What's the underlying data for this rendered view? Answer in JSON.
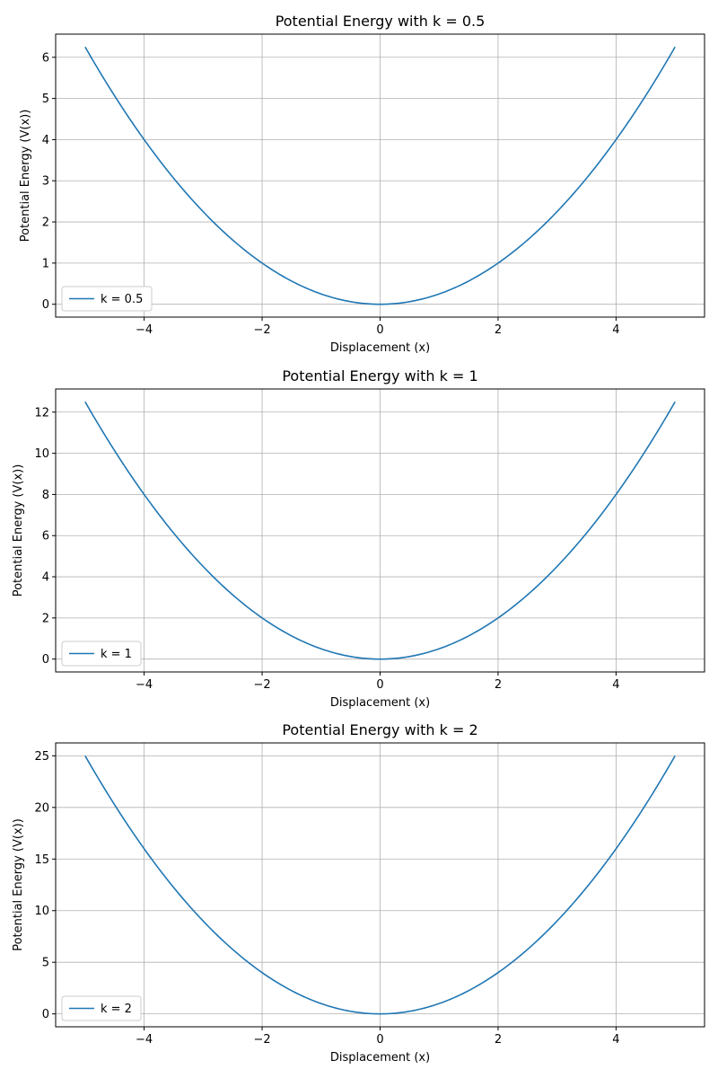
{
  "style": {
    "line_color": "#1f77b4",
    "grid_color": "#b0b0b0",
    "frame_color": "#000000",
    "legend_border_color": "#cccccc"
  },
  "chart_data": [
    {
      "type": "line",
      "title": "Potential Energy with k = 0.5",
      "xlabel": "Displacement (x)",
      "ylabel": "Potential Energy (V(x))",
      "xlim": [
        -5.5,
        5.5
      ],
      "ylim": [
        -0.3125,
        6.5625
      ],
      "xticks": [
        -4,
        -2,
        0,
        2,
        4
      ],
      "xtick_labels": [
        "−4",
        "−2",
        "0",
        "2",
        "4"
      ],
      "yticks": [
        0,
        1,
        2,
        3,
        4,
        5,
        6
      ],
      "ytick_labels": [
        "0",
        "1",
        "2",
        "3",
        "4",
        "5",
        "6"
      ],
      "grid": true,
      "legend_position": "lower-left",
      "series": [
        {
          "name": "k = 0.5",
          "x": [
            -5,
            -4.5,
            -4,
            -3.5,
            -3,
            -2.5,
            -2,
            -1.5,
            -1,
            -0.5,
            0,
            0.5,
            1,
            1.5,
            2,
            2.5,
            3,
            3.5,
            4,
            4.5,
            5
          ],
          "y": [
            6.25,
            5.0625,
            4,
            3.0625,
            2.25,
            1.5625,
            1,
            0.5625,
            0.25,
            0.0625,
            0,
            0.0625,
            0.25,
            0.5625,
            1,
            1.5625,
            2.25,
            3.0625,
            4,
            5.0625,
            6.25
          ]
        }
      ]
    },
    {
      "type": "line",
      "title": "Potential Energy with k = 1",
      "xlabel": "Displacement (x)",
      "ylabel": "Potential Energy (V(x))",
      "xlim": [
        -5.5,
        5.5
      ],
      "ylim": [
        -0.625,
        13.125
      ],
      "xticks": [
        -4,
        -2,
        0,
        2,
        4
      ],
      "xtick_labels": [
        "−4",
        "−2",
        "0",
        "2",
        "4"
      ],
      "yticks": [
        0,
        2,
        4,
        6,
        8,
        10,
        12
      ],
      "ytick_labels": [
        "0",
        "2",
        "4",
        "6",
        "8",
        "10",
        "12"
      ],
      "grid": true,
      "legend_position": "lower-left",
      "series": [
        {
          "name": "k = 1",
          "x": [
            -5,
            -4.5,
            -4,
            -3.5,
            -3,
            -2.5,
            -2,
            -1.5,
            -1,
            -0.5,
            0,
            0.5,
            1,
            1.5,
            2,
            2.5,
            3,
            3.5,
            4,
            4.5,
            5
          ],
          "y": [
            12.5,
            10.125,
            8,
            6.125,
            4.5,
            3.125,
            2,
            1.125,
            0.5,
            0.125,
            0,
            0.125,
            0.5,
            1.125,
            2,
            3.125,
            4.5,
            6.125,
            8,
            10.125,
            12.5
          ]
        }
      ]
    },
    {
      "type": "line",
      "title": "Potential Energy with k = 2",
      "xlabel": "Displacement (x)",
      "ylabel": "Potential Energy (V(x))",
      "xlim": [
        -5.5,
        5.5
      ],
      "ylim": [
        -1.25,
        26.25
      ],
      "xticks": [
        -4,
        -2,
        0,
        2,
        4
      ],
      "xtick_labels": [
        "−4",
        "−2",
        "0",
        "2",
        "4"
      ],
      "yticks": [
        0,
        5,
        10,
        15,
        20,
        25
      ],
      "ytick_labels": [
        "0",
        "5",
        "10",
        "15",
        "20",
        "25"
      ],
      "grid": true,
      "legend_position": "lower-left",
      "series": [
        {
          "name": "k = 2",
          "x": [
            -5,
            -4.5,
            -4,
            -3.5,
            -3,
            -2.5,
            -2,
            -1.5,
            -1,
            -0.5,
            0,
            0.5,
            1,
            1.5,
            2,
            2.5,
            3,
            3.5,
            4,
            4.5,
            5
          ],
          "y": [
            25,
            20.25,
            16,
            12.25,
            9,
            6.25,
            4,
            2.25,
            1,
            0.25,
            0,
            0.25,
            1,
            2.25,
            4,
            6.25,
            9,
            12.25,
            16,
            20.25,
            25
          ]
        }
      ]
    }
  ]
}
